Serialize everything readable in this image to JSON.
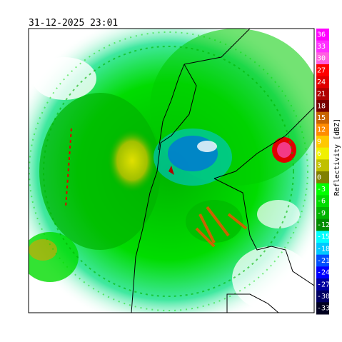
{
  "timestamp": "31-12-2025 23:01",
  "colorbar": {
    "label": "Reflectivity [dBZ]",
    "levels": [
      36,
      33,
      30,
      27,
      24,
      21,
      18,
      15,
      12,
      9,
      6,
      3,
      0,
      -3,
      -6,
      -9,
      -12,
      -15,
      -18,
      -21,
      -24,
      -27,
      -30,
      -33
    ],
    "colors": [
      "#ff00ff",
      "#ff30ff",
      "#ff60e0",
      "#ff0000",
      "#e00000",
      "#b00000",
      "#780000",
      "#c86400",
      "#ff8c00",
      "#ffc800",
      "#f0f000",
      "#c0c000",
      "#808000",
      "#00ff00",
      "#00dc00",
      "#00b400",
      "#008c00",
      "#00ffff",
      "#00c8ff",
      "#0050ff",
      "#0000ff",
      "#0000a0",
      "#000064",
      "#000020"
    ]
  }
}
